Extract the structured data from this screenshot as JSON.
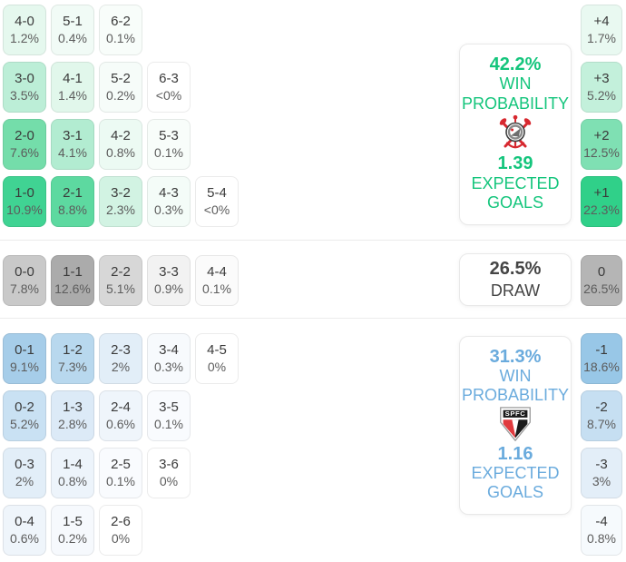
{
  "colors": {
    "home_accent": "#14c57c",
    "away_accent": "#6aabdd",
    "draw_text": "#454545",
    "strong_green": "#30d089",
    "strong_blue": "#98c7e7",
    "strong_gray": "#ababab"
  },
  "home": {
    "summary": {
      "win_pct": "42.2%",
      "win_line1": "WIN",
      "win_line2": "PROBABILITY",
      "xg": "1.39",
      "xg_line1": "EXPECTED",
      "xg_line2": "GOALS"
    },
    "rows": [
      [
        {
          "s": "4-0",
          "p": "1.2%",
          "bg": "#e5f8ee"
        },
        {
          "s": "5-1",
          "p": "0.4%",
          "bg": "#f1fbf6"
        },
        {
          "s": "6-2",
          "p": "0.1%",
          "bg": "#f8fdfa"
        }
      ],
      [
        {
          "s": "3-0",
          "p": "3.5%",
          "bg": "#bceed7"
        },
        {
          "s": "4-1",
          "p": "1.4%",
          "bg": "#e1f7eb"
        },
        {
          "s": "5-2",
          "p": "0.2%",
          "bg": "#f6fcf9"
        },
        {
          "s": "6-3",
          "p": "<0%",
          "bg": "#ffffff"
        }
      ],
      [
        {
          "s": "2-0",
          "p": "7.6%",
          "bg": "#74ddaa"
        },
        {
          "s": "3-1",
          "p": "4.1%",
          "bg": "#b2ecd1"
        },
        {
          "s": "4-2",
          "p": "0.8%",
          "bg": "#ecfaf3"
        },
        {
          "s": "5-3",
          "p": "0.1%",
          "bg": "#f8fdfa"
        }
      ],
      [
        {
          "s": "1-0",
          "p": "10.9%",
          "bg": "#40d393"
        },
        {
          "s": "2-1",
          "p": "8.8%",
          "bg": "#5dd9a0"
        },
        {
          "s": "3-2",
          "p": "2.3%",
          "bg": "#d2f3e3"
        },
        {
          "s": "4-3",
          "p": "0.3%",
          "bg": "#f4fcf8"
        },
        {
          "s": "5-4",
          "p": "<0%",
          "bg": "#ffffff"
        }
      ]
    ],
    "badges": [
      {
        "d": "+4",
        "p": "1.7%",
        "bg": "#e9f9f1"
      },
      {
        "d": "+3",
        "p": "5.2%",
        "bg": "#c3f0db"
      },
      {
        "d": "+2",
        "p": "12.5%",
        "bg": "#7fe0b3"
      },
      {
        "d": "+1",
        "p": "22.3%",
        "bg": "#30d089"
      }
    ]
  },
  "draw": {
    "summary": {
      "pct": "26.5%",
      "label": "DRAW"
    },
    "rows": [
      [
        {
          "s": "0-0",
          "p": "7.8%",
          "bg": "#c9c9c9"
        },
        {
          "s": "1-1",
          "p": "12.6%",
          "bg": "#ababab"
        },
        {
          "s": "2-2",
          "p": "5.1%",
          "bg": "#d7d7d7"
        },
        {
          "s": "3-3",
          "p": "0.9%",
          "bg": "#f2f2f2"
        },
        {
          "s": "4-4",
          "p": "0.1%",
          "bg": "#fbfbfb"
        }
      ]
    ],
    "badges": [
      {
        "d": "0",
        "p": "26.5%",
        "bg": "#b5b5b5"
      }
    ]
  },
  "away": {
    "summary": {
      "win_pct": "31.3%",
      "win_line1": "WIN",
      "win_line2": "PROBABILITY",
      "xg": "1.16",
      "xg_line1": "EXPECTED",
      "xg_line2": "GOALS"
    },
    "rows": [
      [
        {
          "s": "0-1",
          "p": "9.1%",
          "bg": "#a6cde9"
        },
        {
          "s": "1-2",
          "p": "7.3%",
          "bg": "#b8d8ee"
        },
        {
          "s": "2-3",
          "p": "2%",
          "bg": "#e2eef8"
        },
        {
          "s": "3-4",
          "p": "0.3%",
          "bg": "#f7fafd"
        },
        {
          "s": "4-5",
          "p": "0%",
          "bg": "#ffffff"
        }
      ],
      [
        {
          "s": "0-2",
          "p": "5.2%",
          "bg": "#c9e1f3"
        },
        {
          "s": "1-3",
          "p": "2.8%",
          "bg": "#dceaf7"
        },
        {
          "s": "2-4",
          "p": "0.6%",
          "bg": "#eff5fb"
        },
        {
          "s": "3-5",
          "p": "0.1%",
          "bg": "#f9fbfe"
        }
      ],
      [
        {
          "s": "0-3",
          "p": "2%",
          "bg": "#e2eef8"
        },
        {
          "s": "1-4",
          "p": "0.8%",
          "bg": "#edf4fb"
        },
        {
          "s": "2-5",
          "p": "0.1%",
          "bg": "#f9fbfe"
        },
        {
          "s": "3-6",
          "p": "0%",
          "bg": "#ffffff"
        }
      ],
      [
        {
          "s": "0-4",
          "p": "0.6%",
          "bg": "#eff5fb"
        },
        {
          "s": "1-5",
          "p": "0.2%",
          "bg": "#f6f9fd"
        },
        {
          "s": "2-6",
          "p": "0%",
          "bg": "#ffffff"
        }
      ]
    ],
    "badges": [
      {
        "d": "-1",
        "p": "18.6%",
        "bg": "#98c7e7"
      },
      {
        "d": "-2",
        "p": "8.7%",
        "bg": "#c6dff2"
      },
      {
        "d": "-3",
        "p": "3%",
        "bg": "#e3eef8"
      },
      {
        "d": "-4",
        "p": "0.8%",
        "bg": "#f6fafd"
      }
    ]
  },
  "chart_data": {
    "type": "heatmap",
    "title": "Match outcome probabilities (correct score matrix)",
    "home_win": {
      "team_crest": "corinthians-crest",
      "win_probability_pct": 42.2,
      "expected_goals": 1.39,
      "scores": [
        "4-0",
        "5-1",
        "6-2",
        "3-0",
        "4-1",
        "5-2",
        "6-3",
        "2-0",
        "3-1",
        "4-2",
        "5-3",
        "1-0",
        "2-1",
        "3-2",
        "4-3",
        "5-4"
      ],
      "score_pcts": [
        1.2,
        0.4,
        0.1,
        3.5,
        1.4,
        0.2,
        0,
        7.6,
        4.1,
        0.8,
        0.1,
        10.9,
        8.8,
        2.3,
        0.3,
        0
      ],
      "goal_margins": [
        "+4",
        "+3",
        "+2",
        "+1"
      ],
      "margin_pcts": [
        1.7,
        5.2,
        12.5,
        22.3
      ]
    },
    "draw": {
      "probability_pct": 26.5,
      "scores": [
        "0-0",
        "1-1",
        "2-2",
        "3-3",
        "4-4"
      ],
      "score_pcts": [
        7.8,
        12.6,
        5.1,
        0.9,
        0.1
      ],
      "goal_margin": "0",
      "margin_pct": 26.5
    },
    "away_win": {
      "team_crest": "sao-paulo-crest",
      "win_probability_pct": 31.3,
      "expected_goals": 1.16,
      "scores": [
        "0-1",
        "1-2",
        "2-3",
        "3-4",
        "4-5",
        "0-2",
        "1-3",
        "2-4",
        "3-5",
        "0-3",
        "1-4",
        "2-5",
        "3-6",
        "0-4",
        "1-5",
        "2-6"
      ],
      "score_pcts": [
        9.1,
        7.3,
        2,
        0.3,
        0,
        5.2,
        2.8,
        0.6,
        0.1,
        2,
        0.8,
        0.1,
        0,
        0.6,
        0.2,
        0
      ],
      "goal_margins": [
        "-1",
        "-2",
        "-3",
        "-4"
      ],
      "margin_pcts": [
        18.6,
        8.7,
        3,
        0.8
      ]
    }
  }
}
